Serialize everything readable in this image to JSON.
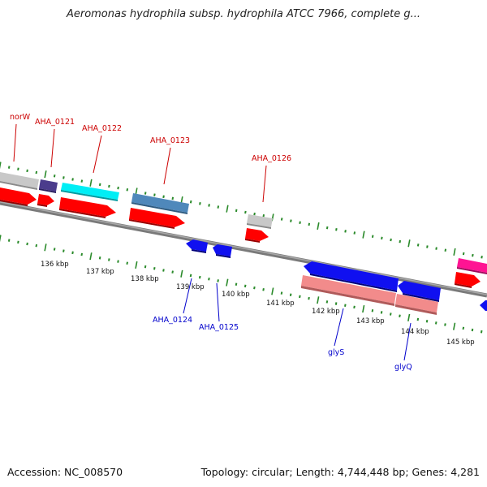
{
  "title": "Aeromonas hydrophila subsp. hydrophila ATCC 7966, complete g...",
  "footer": {
    "accession": "Accession: NC_008570",
    "summary": "Topology: circular; Length: 4,744,448 bp; Genes: 4,281"
  },
  "colors": {
    "backbone": "#808080",
    "tick": "#2a8a2a",
    "forward_label": "#cc0000",
    "reverse_label": "#0000cc",
    "cds_forward": "#ff0000",
    "cds_reverse": "#0000ee",
    "grey_feature": "#c0c0c0",
    "purple_feature": "#4b3c8c",
    "cyan_feature": "#00e5ee",
    "steelblue_feature": "#4682b4",
    "salmon_feature": "#f08080",
    "pink_feature": "#ff1493"
  },
  "scale": {
    "unit": "kbp",
    "ticks": [
      {
        "label": "136 kbp"
      },
      {
        "label": "137 kbp"
      },
      {
        "label": "138 kbp"
      },
      {
        "label": "139 kbp"
      },
      {
        "label": "140 kbp"
      },
      {
        "label": "141 kbp"
      },
      {
        "label": "142 kbp"
      },
      {
        "label": "143 kbp"
      },
      {
        "label": "144 kbp"
      },
      {
        "label": "145 kbp"
      }
    ]
  },
  "genes": {
    "forward": [
      {
        "label": "norW"
      },
      {
        "label": "AHA_0121"
      },
      {
        "label": "AHA_0122"
      },
      {
        "label": "AHA_0123"
      },
      {
        "label": "AHA_0126"
      }
    ],
    "reverse": [
      {
        "label": "AHA_0124"
      },
      {
        "label": "AHA_0125"
      },
      {
        "label": "glyS"
      },
      {
        "label": "glyQ"
      }
    ]
  }
}
